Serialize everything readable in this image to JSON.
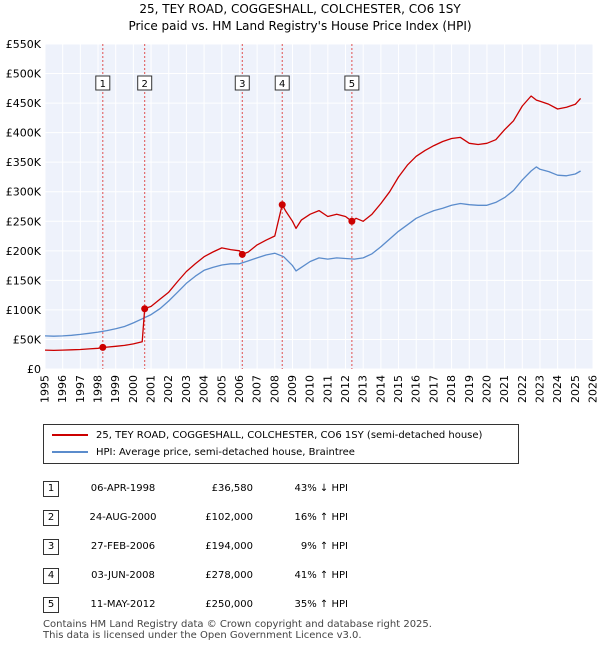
{
  "title": "25, TEY ROAD, COGGESHALL, COLCHESTER, CO6 1SY",
  "subtitle": "Price paid vs. HM Land Registry's House Price Index (HPI)",
  "chart_data": {
    "type": "line",
    "title": "25, TEY ROAD, COGGESHALL, COLCHESTER, CO6 1SY",
    "xlim": [
      1995,
      2026
    ],
    "ylim": [
      0,
      550000
    ],
    "yticks": [
      0,
      50000,
      100000,
      150000,
      200000,
      250000,
      300000,
      350000,
      400000,
      450000,
      500000,
      550000
    ],
    "ytick_labels": [
      "£0",
      "£50K",
      "£100K",
      "£150K",
      "£200K",
      "£250K",
      "£300K",
      "£350K",
      "£400K",
      "£450K",
      "£500K",
      "£550K"
    ],
    "xticks": [
      1995,
      1996,
      1997,
      1998,
      1999,
      2000,
      2001,
      2002,
      2003,
      2004,
      2005,
      2006,
      2007,
      2008,
      2009,
      2010,
      2011,
      2012,
      2013,
      2014,
      2015,
      2016,
      2017,
      2018,
      2019,
      2020,
      2021,
      2022,
      2023,
      2024,
      2025,
      2026
    ],
    "grid": true,
    "series": [
      {
        "name": "25, TEY ROAD, COGGESHALL, COLCHESTER, CO6 1SY (semi-detached house)",
        "color": "#cc0000",
        "x": [
          1995.0,
          1995.5,
          1996.0,
          1996.5,
          1997.0,
          1997.5,
          1998.0,
          1998.27,
          1998.5,
          1999.0,
          1999.5,
          2000.0,
          2000.5,
          2000.64,
          2001.0,
          2001.5,
          2002.0,
          2002.5,
          2003.0,
          2003.5,
          2004.0,
          2004.5,
          2005.0,
          2005.5,
          2006.0,
          2006.16,
          2006.5,
          2007.0,
          2007.5,
          2008.0,
          2008.42,
          2008.6,
          2009.0,
          2009.2,
          2009.5,
          2010.0,
          2010.5,
          2011.0,
          2011.5,
          2012.0,
          2012.36,
          2012.6,
          2013.0,
          2013.5,
          2014.0,
          2014.5,
          2015.0,
          2015.5,
          2016.0,
          2016.5,
          2017.0,
          2017.5,
          2018.0,
          2018.5,
          2019.0,
          2019.5,
          2020.0,
          2020.5,
          2021.0,
          2021.5,
          2022.0,
          2022.5,
          2022.8,
          2023.0,
          2023.5,
          2024.0,
          2024.5,
          2025.0,
          2025.3
        ],
        "y": [
          32000,
          31500,
          32000,
          32500,
          33000,
          34000,
          35000,
          36580,
          37000,
          38500,
          40000,
          42500,
          46000,
          102000,
          106000,
          118000,
          130000,
          148000,
          165000,
          178000,
          190000,
          198000,
          205000,
          202000,
          200000,
          194000,
          198000,
          210000,
          218000,
          225000,
          278000,
          268000,
          250000,
          238000,
          252000,
          262000,
          268000,
          258000,
          262000,
          258000,
          250000,
          255000,
          250000,
          262000,
          280000,
          300000,
          325000,
          345000,
          360000,
          370000,
          378000,
          385000,
          390000,
          392000,
          382000,
          380000,
          382000,
          388000,
          405000,
          420000,
          445000,
          462000,
          455000,
          453000,
          448000,
          440000,
          443000,
          448000,
          458000
        ]
      },
      {
        "name": "HPI: Average price, semi-detached house, Braintree",
        "color": "#5b8ccc",
        "x": [
          1995.0,
          1995.5,
          1996.0,
          1996.5,
          1997.0,
          1997.5,
          1998.0,
          1998.5,
          1999.0,
          1999.5,
          2000.0,
          2000.5,
          2001.0,
          2001.5,
          2002.0,
          2002.5,
          2003.0,
          2003.5,
          2004.0,
          2004.5,
          2005.0,
          2005.5,
          2006.0,
          2006.5,
          2007.0,
          2007.5,
          2008.0,
          2008.5,
          2009.0,
          2009.2,
          2009.5,
          2010.0,
          2010.5,
          2011.0,
          2011.5,
          2012.0,
          2012.5,
          2013.0,
          2013.5,
          2014.0,
          2014.5,
          2015.0,
          2015.5,
          2016.0,
          2016.5,
          2017.0,
          2017.5,
          2018.0,
          2018.5,
          2019.0,
          2019.5,
          2020.0,
          2020.5,
          2021.0,
          2021.5,
          2022.0,
          2022.5,
          2022.8,
          2023.0,
          2023.5,
          2024.0,
          2024.5,
          2025.0,
          2025.3
        ],
        "y": [
          56000,
          55500,
          56000,
          57000,
          58500,
          60500,
          62500,
          65000,
          68000,
          72000,
          78000,
          85000,
          92000,
          102000,
          115000,
          130000,
          145000,
          157000,
          167000,
          172000,
          176000,
          178000,
          178000,
          183000,
          188000,
          193000,
          196000,
          190000,
          175000,
          166000,
          172000,
          182000,
          188000,
          186000,
          188000,
          187000,
          186000,
          188000,
          195000,
          207000,
          220000,
          233000,
          244000,
          255000,
          262000,
          268000,
          272000,
          277000,
          280000,
          278000,
          277000,
          277000,
          282000,
          290000,
          302000,
          320000,
          335000,
          342000,
          338000,
          334000,
          328000,
          327000,
          330000,
          335000
        ]
      }
    ],
    "sales": [
      {
        "label": "1",
        "x": 1998.27,
        "y": 36580
      },
      {
        "label": "2",
        "x": 2000.64,
        "y": 102000
      },
      {
        "label": "3",
        "x": 2006.16,
        "y": 194000
      },
      {
        "label": "4",
        "x": 2008.42,
        "y": 278000
      },
      {
        "label": "5",
        "x": 2012.36,
        "y": 250000
      }
    ]
  },
  "legend": {
    "property": "25, TEY ROAD, COGGESHALL, COLCHESTER, CO6 1SY (semi-detached house)",
    "hpi": "HPI: Average price, semi-detached house, Braintree",
    "property_color": "#cc0000",
    "hpi_color": "#5b8ccc"
  },
  "table": [
    {
      "num": "1",
      "date": "06-APR-1998",
      "price": "£36,580",
      "hpi": "43% ↓ HPI"
    },
    {
      "num": "2",
      "date": "24-AUG-2000",
      "price": "£102,000",
      "hpi": "16% ↑ HPI"
    },
    {
      "num": "3",
      "date": "27-FEB-2006",
      "price": "£194,000",
      "hpi": "9% ↑ HPI"
    },
    {
      "num": "4",
      "date": "03-JUN-2008",
      "price": "£278,000",
      "hpi": "41% ↑ HPI"
    },
    {
      "num": "5",
      "date": "11-MAY-2012",
      "price": "£250,000",
      "hpi": "35% ↑ HPI"
    }
  ],
  "footer": {
    "line1": "Contains HM Land Registry data © Crown copyright and database right 2025.",
    "line2": "This data is licensed under the Open Government Licence v3.0."
  }
}
